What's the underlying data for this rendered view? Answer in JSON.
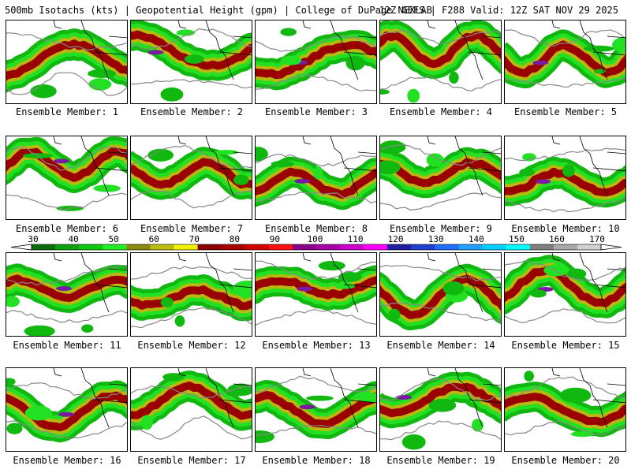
{
  "header": {
    "left": "500mb Isotachs (kts) | Geopotential Height (gpm) | College of DuPage NEXLAB",
    "right": "12Z GEFS | F288 Valid: 12Z SAT NOV 29 2025"
  },
  "members": [
    {
      "label": "Ensemble Member: 1"
    },
    {
      "label": "Ensemble Member: 2"
    },
    {
      "label": "Ensemble Member: 3"
    },
    {
      "label": "Ensemble Member: 4"
    },
    {
      "label": "Ensemble Member: 5"
    },
    {
      "label": "Ensemble Member: 6"
    },
    {
      "label": "Ensemble Member: 7"
    },
    {
      "label": "Ensemble Member: 8"
    },
    {
      "label": "Ensemble Member: 9"
    },
    {
      "label": "Ensemble Member: 10"
    },
    {
      "label": "Ensemble Member: 11"
    },
    {
      "label": "Ensemble Member: 12"
    },
    {
      "label": "Ensemble Member: 13"
    },
    {
      "label": "Ensemble Member: 14"
    },
    {
      "label": "Ensemble Member: 15"
    },
    {
      "label": "Ensemble Member: 16"
    },
    {
      "label": "Ensemble Member: 17"
    },
    {
      "label": "Ensemble Member: 18"
    },
    {
      "label": "Ensemble Member: 19"
    },
    {
      "label": "Ensemble Member: 20"
    }
  ],
  "colorbar": {
    "labels": [
      "30",
      "40",
      "50",
      "60",
      "70",
      "80",
      "90",
      "100",
      "110",
      "120",
      "130",
      "140",
      "150",
      "160",
      "170"
    ],
    "colors": [
      "#0a6e0a",
      "#0ea00e",
      "#10c810",
      "#22ee22",
      "#8a8a10",
      "#bcbc10",
      "#f0f000",
      "#8a0000",
      "#a80000",
      "#d00000",
      "#ff1010",
      "#8a008a",
      "#aa00aa",
      "#cc00cc",
      "#ff00ff",
      "#2020a0",
      "#2040d0",
      "#1e6fff",
      "#20a0ff",
      "#00d0ff",
      "#00ffff",
      "#808080",
      "#a8a8a8",
      "#d0d0d0"
    ]
  }
}
